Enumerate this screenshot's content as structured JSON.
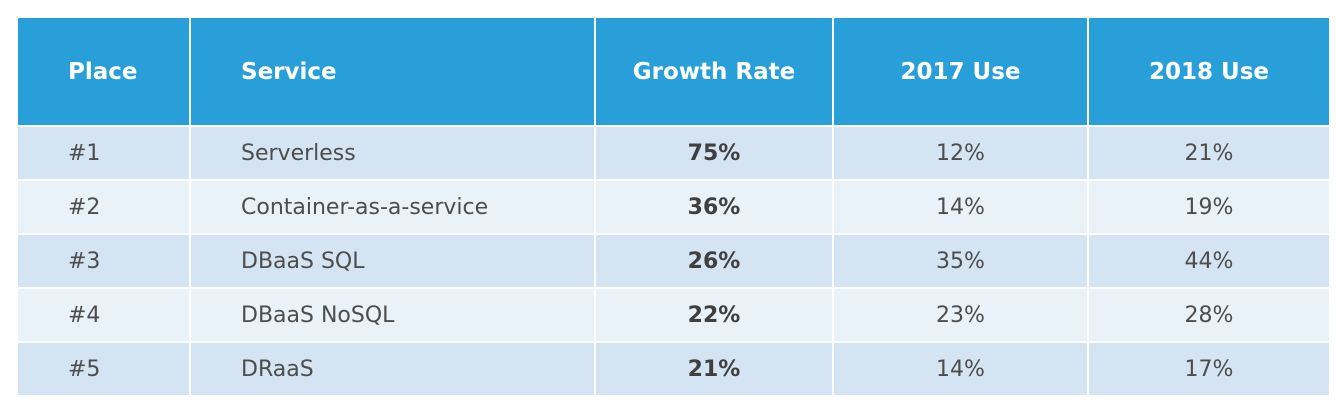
{
  "table": {
    "headers": {
      "place": "Place",
      "service": "Service",
      "growth": "Growth Rate",
      "use2017": "2017 Use",
      "use2018": "2018 Use"
    },
    "rows": [
      {
        "place": "#1",
        "service": "Serverless",
        "growth": "75%",
        "use2017": "12%",
        "use2018": "21%"
      },
      {
        "place": "#2",
        "service": "Container-as-a-service",
        "growth": "36%",
        "use2017": "14%",
        "use2018": "19%"
      },
      {
        "place": "#3",
        "service": "DBaaS SQL",
        "growth": "26%",
        "use2017": "35%",
        "use2018": "44%"
      },
      {
        "place": "#4",
        "service": "DBaaS NoSQL",
        "growth": "22%",
        "use2017": "23%",
        "use2018": "28%"
      },
      {
        "place": "#5",
        "service": "DRaaS",
        "growth": "21%",
        "use2017": "14%",
        "use2018": "17%"
      }
    ]
  },
  "colors": {
    "header_bg": "#289fd8",
    "row_odd": "#d4e4f2",
    "row_even": "#e9f1f9"
  }
}
